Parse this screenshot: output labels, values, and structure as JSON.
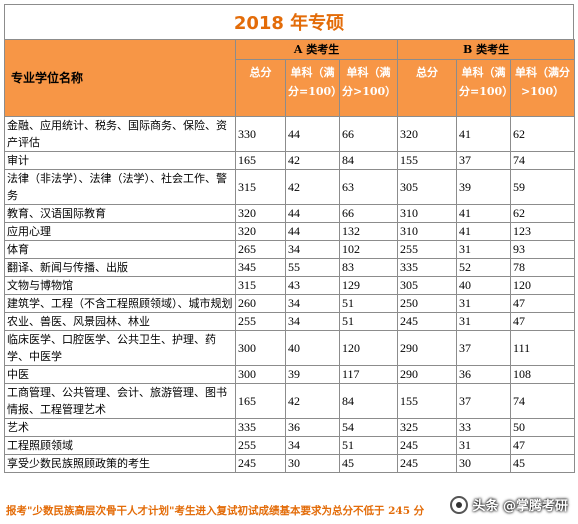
{
  "title": "2018 年专硕",
  "header": {
    "name_col": "专业学位名称",
    "group_a": "A 类考生",
    "group_b": "B 类考生",
    "total": "总分",
    "single_small": "单科（满分=100）",
    "single_large": "单科（满分>100）"
  },
  "columns": [
    "专业学位名称",
    "A总分",
    "A单科（满分=100）",
    "A单科（满分>100）",
    "B总分",
    "B单科（满分=100）",
    "B单科（满分>100）"
  ],
  "rows": [
    {
      "name": "金融、应用统计、税务、国际商务、保险、资产评估",
      "a_total": "330",
      "a_s100": "44",
      "a_sgt": "66",
      "b_total": "320",
      "b_s100": "41",
      "b_sgt": "62"
    },
    {
      "name": "审计",
      "a_total": "165",
      "a_s100": "42",
      "a_sgt": "84",
      "b_total": "155",
      "b_s100": "37",
      "b_sgt": "74"
    },
    {
      "name": "法律（非法学）、法律（法学）、社会工作、警务",
      "a_total": "315",
      "a_s100": "42",
      "a_sgt": "63",
      "b_total": "305",
      "b_s100": "39",
      "b_sgt": "59"
    },
    {
      "name": "教育、汉语国际教育",
      "a_total": "320",
      "a_s100": "44",
      "a_sgt": "66",
      "b_total": "310",
      "b_s100": "41",
      "b_sgt": "62"
    },
    {
      "name": "应用心理",
      "a_total": "320",
      "a_s100": "44",
      "a_sgt": "132",
      "b_total": "310",
      "b_s100": "41",
      "b_sgt": "123"
    },
    {
      "name": "体育",
      "a_total": "265",
      "a_s100": "34",
      "a_sgt": "102",
      "b_total": "255",
      "b_s100": "31",
      "b_sgt": "93"
    },
    {
      "name": "翻译、新闻与传播、出版",
      "a_total": "345",
      "a_s100": "55",
      "a_sgt": "83",
      "b_total": "335",
      "b_s100": "52",
      "b_sgt": "78"
    },
    {
      "name": "文物与博物馆",
      "a_total": "315",
      "a_s100": "43",
      "a_sgt": "129",
      "b_total": "305",
      "b_s100": "40",
      "b_sgt": "120"
    },
    {
      "name": "建筑学、工程（不含工程照顾领域）、城市规划",
      "a_total": "260",
      "a_s100": "34",
      "a_sgt": "51",
      "b_total": "250",
      "b_s100": "31",
      "b_sgt": "47"
    },
    {
      "name": "农业、兽医、风景园林、林业",
      "a_total": "255",
      "a_s100": "34",
      "a_sgt": "51",
      "b_total": "245",
      "b_s100": "31",
      "b_sgt": "47"
    },
    {
      "name": "临床医学、口腔医学、公共卫生、护理、药学、中医学",
      "a_total": "300",
      "a_s100": "40",
      "a_sgt": "120",
      "b_total": "290",
      "b_s100": "37",
      "b_sgt": "111"
    },
    {
      "name": "中医",
      "a_total": "300",
      "a_s100": "39",
      "a_sgt": "117",
      "b_total": "290",
      "b_s100": "36",
      "b_sgt": "108"
    },
    {
      "name": "工商管理、公共管理、会计、旅游管理、图书情报、工程管理艺术",
      "a_total": "165",
      "a_s100": "42",
      "a_sgt": "84",
      "b_total": "155",
      "b_s100": "37",
      "b_sgt": "74"
    },
    {
      "name": "艺术",
      "a_total": "335",
      "a_s100": "36",
      "a_sgt": "54",
      "b_total": "325",
      "b_s100": "33",
      "b_sgt": "50"
    },
    {
      "name": "工程照顾领域",
      "a_total": "255",
      "a_s100": "34",
      "a_sgt": "51",
      "b_total": "245",
      "b_s100": "31",
      "b_sgt": "47"
    },
    {
      "name": "享受少数民族照顾政策的考生",
      "a_total": "245",
      "a_s100": "30",
      "a_sgt": "45",
      "b_total": "245",
      "b_s100": "30",
      "b_sgt": "45"
    }
  ],
  "footer": "报考\"少数民族高层次骨干人才计划\"考生进入复试初试成绩基本要求为总分不低于 245 分",
  "watermark": "头条 @掌腾考研",
  "colors": {
    "header_bg": "#f79646",
    "title": "#e36c09",
    "border": "#8c8c8c"
  }
}
